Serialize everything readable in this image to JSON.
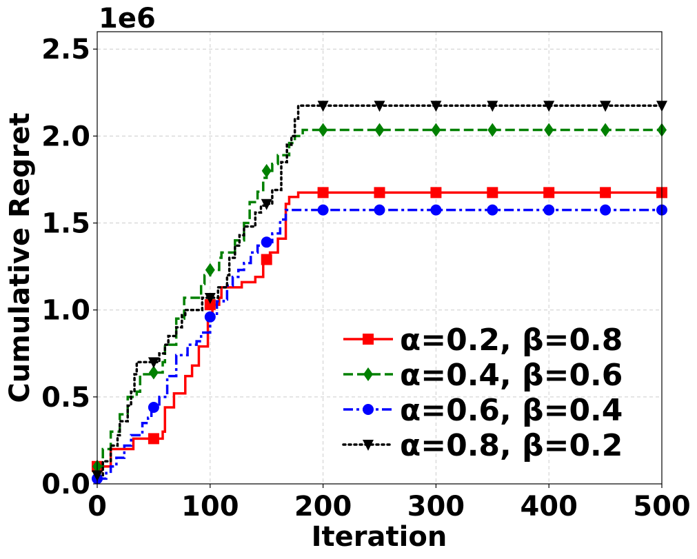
{
  "chart_data": {
    "type": "line",
    "xlabel": "Iteration",
    "ylabel": "Cumulative Regret",
    "offset_label": "1e6",
    "xlim": [
      0,
      500
    ],
    "ylim": [
      0,
      2.6
    ],
    "x_ticks": [
      0,
      100,
      200,
      300,
      400,
      500
    ],
    "x_tick_labels": [
      "0",
      "100",
      "200",
      "300",
      "400",
      "500"
    ],
    "y_ticks": [
      0,
      0.5,
      1.0,
      1.5,
      2.0,
      2.5
    ],
    "y_tick_labels": [
      "0.0",
      "0.5",
      "1.0",
      "1.5",
      "2.0",
      "2.5"
    ],
    "grid": true,
    "legend_position": "lower-right",
    "series": [
      {
        "name": "α=0.2, β=0.8",
        "color": "#ff0000",
        "dash": "solid",
        "marker": "square",
        "steps": [
          [
            0,
            0.1
          ],
          [
            10,
            0.1
          ],
          [
            12,
            0.2
          ],
          [
            30,
            0.2
          ],
          [
            32,
            0.26
          ],
          [
            55,
            0.26
          ],
          [
            58,
            0.3
          ],
          [
            60,
            0.44
          ],
          [
            66,
            0.44
          ],
          [
            68,
            0.52
          ],
          [
            76,
            0.52
          ],
          [
            78,
            0.62
          ],
          [
            82,
            0.62
          ],
          [
            84,
            0.68
          ],
          [
            88,
            0.68
          ],
          [
            90,
            0.79
          ],
          [
            96,
            0.79
          ],
          [
            98,
            0.97
          ],
          [
            101,
            0.97
          ],
          [
            102,
            1.03
          ],
          [
            108,
            1.07
          ],
          [
            110,
            1.13
          ],
          [
            125,
            1.13
          ],
          [
            128,
            1.16
          ],
          [
            140,
            1.19
          ],
          [
            145,
            1.19
          ],
          [
            147,
            1.29
          ],
          [
            152,
            1.29
          ],
          [
            153,
            1.33
          ],
          [
            158,
            1.33
          ],
          [
            160,
            1.41
          ],
          [
            165,
            1.41
          ],
          [
            167,
            1.61
          ],
          [
            168,
            1.61
          ],
          [
            170,
            1.65
          ],
          [
            176,
            1.65
          ],
          [
            178,
            1.675
          ],
          [
            500,
            1.675
          ]
        ],
        "markers_x": [
          0,
          50,
          100,
          150,
          200,
          250,
          300,
          350,
          400,
          450,
          500
        ],
        "markers_y": [
          0.1,
          0.26,
          1.03,
          1.29,
          1.675,
          1.675,
          1.675,
          1.675,
          1.675,
          1.675,
          1.675
        ]
      },
      {
        "name": "α=0.4, β=0.6",
        "color": "#008000",
        "dash": "dashed",
        "marker": "diamond",
        "steps": [
          [
            0,
            0.1
          ],
          [
            3,
            0.1
          ],
          [
            5,
            0.2
          ],
          [
            10,
            0.2
          ],
          [
            12,
            0.3
          ],
          [
            18,
            0.3
          ],
          [
            20,
            0.4
          ],
          [
            25,
            0.4
          ],
          [
            27,
            0.5
          ],
          [
            35,
            0.53
          ],
          [
            38,
            0.63
          ],
          [
            48,
            0.63
          ],
          [
            50,
            0.64
          ],
          [
            58,
            0.7
          ],
          [
            60,
            0.8
          ],
          [
            68,
            0.8
          ],
          [
            70,
            0.95
          ],
          [
            75,
            0.95
          ],
          [
            77,
            1.07
          ],
          [
            90,
            1.07
          ],
          [
            92,
            1.15
          ],
          [
            95,
            1.2
          ],
          [
            100,
            1.23
          ],
          [
            108,
            1.3
          ],
          [
            110,
            1.33
          ],
          [
            120,
            1.33
          ],
          [
            122,
            1.4
          ],
          [
            130,
            1.5
          ],
          [
            133,
            1.5
          ],
          [
            135,
            1.62
          ],
          [
            140,
            1.62
          ],
          [
            142,
            1.68
          ],
          [
            147,
            1.76
          ],
          [
            150,
            1.8
          ],
          [
            152,
            1.8
          ],
          [
            155,
            1.84
          ],
          [
            160,
            1.89
          ],
          [
            168,
            1.89
          ],
          [
            170,
            1.96
          ],
          [
            173,
            1.96
          ],
          [
            175,
            2.0
          ],
          [
            180,
            2.0
          ],
          [
            182,
            2.035
          ],
          [
            500,
            2.035
          ]
        ],
        "markers_x": [
          0,
          50,
          100,
          150,
          200,
          250,
          300,
          350,
          400,
          450,
          500
        ],
        "markers_y": [
          0.1,
          0.64,
          1.23,
          1.8,
          2.035,
          2.035,
          2.035,
          2.035,
          2.035,
          2.035,
          2.035
        ]
      },
      {
        "name": "α=0.6, β=0.4",
        "color": "#0000ff",
        "dash": "dashdot",
        "marker": "circle",
        "steps": [
          [
            0,
            0.03
          ],
          [
            6,
            0.03
          ],
          [
            8,
            0.07
          ],
          [
            12,
            0.1
          ],
          [
            15,
            0.1
          ],
          [
            17,
            0.15
          ],
          [
            22,
            0.15
          ],
          [
            24,
            0.22
          ],
          [
            28,
            0.22
          ],
          [
            30,
            0.28
          ],
          [
            38,
            0.28
          ],
          [
            40,
            0.35
          ],
          [
            45,
            0.38
          ],
          [
            48,
            0.44
          ],
          [
            52,
            0.44
          ],
          [
            55,
            0.5
          ],
          [
            60,
            0.5
          ],
          [
            62,
            0.62
          ],
          [
            68,
            0.62
          ],
          [
            70,
            0.74
          ],
          [
            78,
            0.74
          ],
          [
            80,
            0.8
          ],
          [
            88,
            0.82
          ],
          [
            92,
            0.87
          ],
          [
            97,
            0.87
          ],
          [
            100,
            0.96
          ],
          [
            104,
            0.96
          ],
          [
            106,
            1.05
          ],
          [
            112,
            1.06
          ],
          [
            115,
            1.14
          ],
          [
            120,
            1.19
          ],
          [
            125,
            1.23
          ],
          [
            130,
            1.27
          ],
          [
            134,
            1.27
          ],
          [
            136,
            1.33
          ],
          [
            140,
            1.33
          ],
          [
            142,
            1.37
          ],
          [
            150,
            1.39
          ],
          [
            155,
            1.44
          ],
          [
            160,
            1.44
          ],
          [
            162,
            1.52
          ],
          [
            165,
            1.52
          ],
          [
            167,
            1.575
          ],
          [
            500,
            1.575
          ]
        ],
        "markers_x": [
          0,
          50,
          100,
          150,
          200,
          250,
          300,
          350,
          400,
          450,
          500
        ],
        "markers_y": [
          0.03,
          0.44,
          0.96,
          1.39,
          1.575,
          1.575,
          1.575,
          1.575,
          1.575,
          1.575,
          1.575
        ]
      },
      {
        "name": "α=0.8, β=0.2",
        "color": "#000000",
        "dash": "dotted",
        "marker": "triangle-down",
        "steps": [
          [
            0,
            0.05
          ],
          [
            3,
            0.05
          ],
          [
            5,
            0.13
          ],
          [
            10,
            0.13
          ],
          [
            12,
            0.22
          ],
          [
            18,
            0.28
          ],
          [
            20,
            0.36
          ],
          [
            25,
            0.36
          ],
          [
            27,
            0.45
          ],
          [
            30,
            0.53
          ],
          [
            33,
            0.63
          ],
          [
            35,
            0.7
          ],
          [
            48,
            0.7
          ],
          [
            50,
            0.7
          ],
          [
            55,
            0.75
          ],
          [
            60,
            0.8
          ],
          [
            63,
            0.85
          ],
          [
            70,
            0.9
          ],
          [
            75,
            0.97
          ],
          [
            78,
            1.0
          ],
          [
            90,
            1.0
          ],
          [
            93,
            1.07
          ],
          [
            105,
            1.07
          ],
          [
            107,
            1.13
          ],
          [
            115,
            1.2
          ],
          [
            117,
            1.3
          ],
          [
            120,
            1.3
          ],
          [
            122,
            1.37
          ],
          [
            126,
            1.43
          ],
          [
            130,
            1.48
          ],
          [
            137,
            1.48
          ],
          [
            140,
            1.56
          ],
          [
            145,
            1.6
          ],
          [
            150,
            1.61
          ],
          [
            155,
            1.69
          ],
          [
            160,
            1.69
          ],
          [
            163,
            1.85
          ],
          [
            166,
            1.85
          ],
          [
            168,
            1.95
          ],
          [
            172,
            2.0
          ],
          [
            175,
            2.1
          ],
          [
            178,
            2.175
          ],
          [
            500,
            2.175
          ]
        ],
        "markers_x": [
          0,
          50,
          100,
          150,
          200,
          250,
          300,
          350,
          400,
          450,
          500
        ],
        "markers_y": [
          0.05,
          0.7,
          1.07,
          1.61,
          2.175,
          2.175,
          2.175,
          2.175,
          2.175,
          2.175,
          2.175
        ]
      }
    ]
  }
}
